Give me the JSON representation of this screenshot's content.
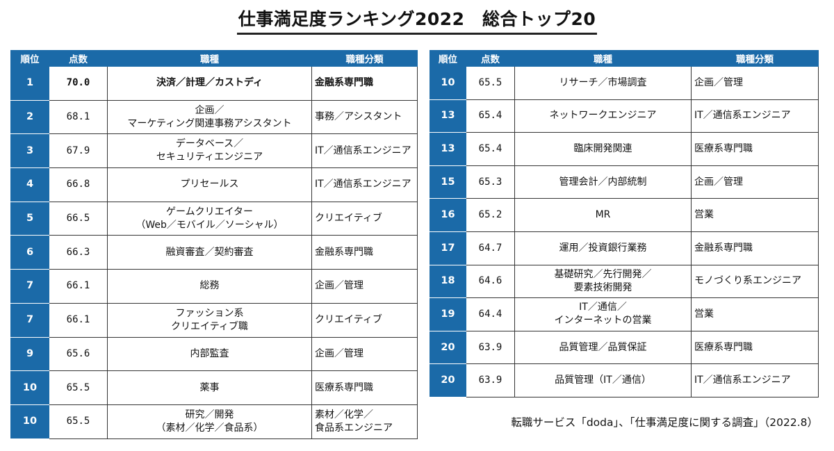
{
  "title": "仕事満足度ランキング2022　総合トップ20",
  "headers": {
    "rank": "順位",
    "score": "点数",
    "job": "職種",
    "category": "職種分類"
  },
  "left_rows": [
    {
      "rank": "1",
      "score": "70.0",
      "job": [
        "決済／計理／カストディ"
      ],
      "category": [
        "金融系専門職"
      ]
    },
    {
      "rank": "2",
      "score": "68.1",
      "job": [
        "企画／",
        "マーケティング関連事務アシスタント"
      ],
      "category": [
        "事務／アシスタント"
      ]
    },
    {
      "rank": "3",
      "score": "67.9",
      "job": [
        "データベース／",
        "セキュリティエンジニア"
      ],
      "category": [
        "IT／通信系エンジニア"
      ]
    },
    {
      "rank": "4",
      "score": "66.8",
      "job": [
        "プリセールス"
      ],
      "category": [
        "IT／通信系エンジニア"
      ]
    },
    {
      "rank": "5",
      "score": "66.5",
      "job": [
        "ゲームクリエイター",
        "（Web／モバイル／ソーシャル）"
      ],
      "category": [
        "クリエイティブ"
      ]
    },
    {
      "rank": "6",
      "score": "66.3",
      "job": [
        "融資審査／契約審査"
      ],
      "category": [
        "金融系専門職"
      ]
    },
    {
      "rank": "7",
      "score": "66.1",
      "job": [
        "総務"
      ],
      "category": [
        "企画／管理"
      ]
    },
    {
      "rank": "7",
      "score": "66.1",
      "job": [
        "ファッション系",
        "クリエイティブ職"
      ],
      "category": [
        "クリエイティブ"
      ]
    },
    {
      "rank": "9",
      "score": "65.6",
      "job": [
        "内部監査"
      ],
      "category": [
        "企画／管理"
      ]
    },
    {
      "rank": "10",
      "score": "65.5",
      "job": [
        "薬事"
      ],
      "category": [
        "医療系専門職"
      ]
    },
    {
      "rank": "10",
      "score": "65.5",
      "job": [
        "研究／開発",
        "（素材／化学／食品系）"
      ],
      "category": [
        "素材／化学／",
        "食品系エンジニア"
      ]
    }
  ],
  "right_rows": [
    {
      "rank": "10",
      "score": "65.5",
      "job": [
        "リサーチ／市場調査"
      ],
      "category": [
        "企画／管理"
      ]
    },
    {
      "rank": "13",
      "score": "65.4",
      "job": [
        "ネットワークエンジニア"
      ],
      "category": [
        "IT／通信系エンジニア"
      ]
    },
    {
      "rank": "13",
      "score": "65.4",
      "job": [
        "臨床開発関連"
      ],
      "category": [
        "医療系専門職"
      ]
    },
    {
      "rank": "15",
      "score": "65.3",
      "job": [
        "管理会計／内部統制"
      ],
      "category": [
        "企画／管理"
      ]
    },
    {
      "rank": "16",
      "score": "65.2",
      "job": [
        "MR"
      ],
      "category": [
        "営業"
      ]
    },
    {
      "rank": "17",
      "score": "64.7",
      "job": [
        "運用／投資銀行業務"
      ],
      "category": [
        "金融系専門職"
      ]
    },
    {
      "rank": "18",
      "score": "64.6",
      "job": [
        "基礎研究／先行開発／",
        "要素技術開発"
      ],
      "category": [
        "モノづくり系エンジニア"
      ]
    },
    {
      "rank": "19",
      "score": "64.4",
      "job": [
        "IT／通信／",
        "インターネットの営業"
      ],
      "category": [
        "営業"
      ]
    },
    {
      "rank": "20",
      "score": "63.9",
      "job": [
        "品質管理／品質保証"
      ],
      "category": [
        "医療系専門職"
      ]
    },
    {
      "rank": "20",
      "score": "63.9",
      "job": [
        "品質管理（IT／通信）"
      ],
      "category": [
        "IT／通信系エンジニア"
      ]
    }
  ],
  "source": "転職サービス「doda」、「仕事満足度に関する調査」（2022.8）",
  "colors": {
    "header_bg": "#1b6aa8",
    "header_text": "#ffffff",
    "border": "#333333"
  }
}
